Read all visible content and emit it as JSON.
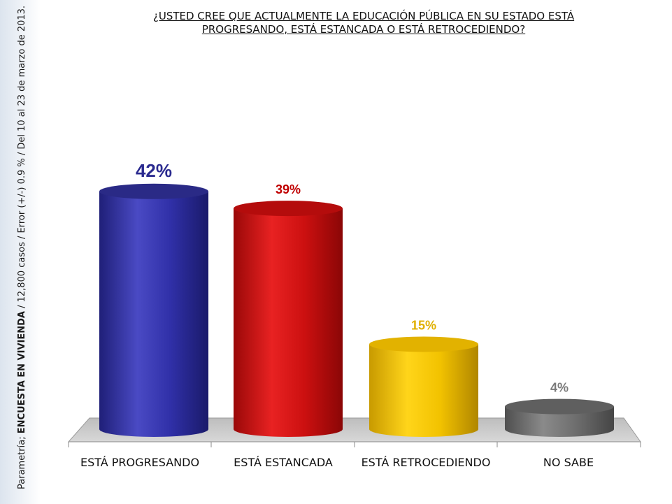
{
  "title_line1": "¿USTED CREE QUE ACTUALMENTE LA EDUCACIÓN PÚBLICA EN SU ESTADO ESTÁ",
  "title_line2": "PROGRESANDO, ESTÁ ESTANCADA O ESTÁ RETROCEDIENDO?",
  "side_note": {
    "source": "Parametría; ",
    "survey": "ENCUESTA EN VIVIENDA",
    "details": " / 12,800 casos / Error (+/-) 0.9 % / Del 10 al 23 de marzo de 2013."
  },
  "colors": {
    "bar1": "#2e2e9e",
    "bar2": "#d11010",
    "bar3": "#f0c000",
    "bar4": "#6f6f6f",
    "label1": "#2a2a8f",
    "label2": "#c00000",
    "label3": "#e0b000",
    "label4": "#7a7a7a",
    "floor": "#c8c8c8"
  },
  "chart_data": {
    "type": "bar",
    "categories": [
      "ESTÁ PROGRESANDO",
      "ESTÁ ESTANCADA",
      "ESTÁ RETROCEDIENDO",
      "NO SABE"
    ],
    "values": [
      42,
      39,
      15,
      4
    ],
    "data_labels": [
      "42%",
      "39%",
      "15%",
      "4%"
    ],
    "title": "¿USTED CREE QUE ACTUALMENTE LA EDUCACIÓN PÚBLICA EN SU ESTADO ESTÁ PROGRESANDO, ESTÁ ESTANCADA O ESTÁ RETROCEDIENDO?",
    "xlabel": "",
    "ylabel": "",
    "ylim": [
      0,
      50
    ],
    "grid": false,
    "legend": "none"
  }
}
